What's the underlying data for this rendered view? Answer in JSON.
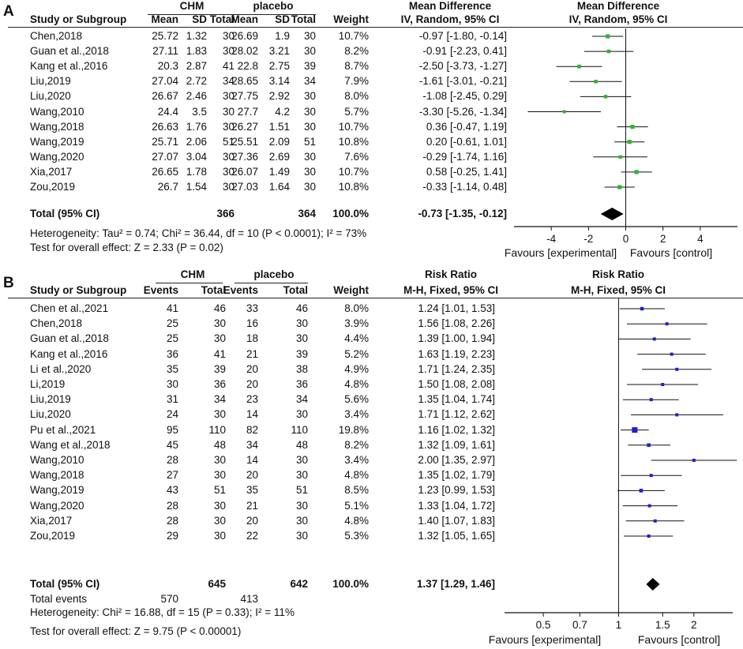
{
  "chart_data": [
    {
      "panel_label": "A",
      "type": "forest",
      "col_headers": {
        "study": "Study or Subgroup",
        "group1": "CHM",
        "group2": "placebo",
        "g1": [
          "Mean",
          "SD",
          "Total"
        ],
        "g2": [
          "Mean",
          "SD",
          "Total"
        ],
        "weight": "Weight",
        "effect_title": "Mean Difference",
        "effect_sub": "IV, Random, 95% CI",
        "plot_title": "Mean Difference",
        "plot_sub": "IV, Random, 95% CI"
      },
      "studies": [
        {
          "name": "Chen,2018",
          "c1": "25.72",
          "c2": "1.32",
          "c3": "30",
          "p1": "26.69",
          "p2": "1.9",
          "p3": "30",
          "weight": "10.7%",
          "ci_text": "-0.97 [-1.80, -0.14]",
          "est": -0.97,
          "lo": -1.8,
          "hi": -0.14
        },
        {
          "name": "Guan et al.,2018",
          "c1": "27.11",
          "c2": "1.83",
          "c3": "30",
          "p1": "28.02",
          "p2": "3.21",
          "p3": "30",
          "weight": "8.2%",
          "ci_text": "-0.91 [-2.23, 0.41]",
          "est": -0.91,
          "lo": -2.23,
          "hi": 0.41
        },
        {
          "name": "Kang et al.,2016",
          "c1": "20.3",
          "c2": "2.87",
          "c3": "41",
          "p1": "22.8",
          "p2": "2.75",
          "p3": "39",
          "weight": "8.7%",
          "ci_text": "-2.50 [-3.73, -1.27]",
          "est": -2.5,
          "lo": -3.73,
          "hi": -1.27
        },
        {
          "name": "Liu,2019",
          "c1": "27.04",
          "c2": "2.72",
          "c3": "34",
          "p1": "28.65",
          "p2": "3.14",
          "p3": "34",
          "weight": "7.9%",
          "ci_text": "-1.61 [-3.01, -0.21]",
          "est": -1.61,
          "lo": -3.01,
          "hi": -0.21
        },
        {
          "name": "Liu,2020",
          "c1": "26.67",
          "c2": "2.46",
          "c3": "30",
          "p1": "27.75",
          "p2": "2.92",
          "p3": "30",
          "weight": "8.0%",
          "ci_text": "-1.08 [-2.45, 0.29]",
          "est": -1.08,
          "lo": -2.45,
          "hi": 0.29
        },
        {
          "name": "Wang,2010",
          "c1": "24.4",
          "c2": "3.5",
          "c3": "30",
          "p1": "27.7",
          "p2": "4.2",
          "p3": "30",
          "weight": "5.7%",
          "ci_text": "-3.30 [-5.26, -1.34]",
          "est": -3.3,
          "lo": -5.26,
          "hi": -1.34
        },
        {
          "name": "Wang,2018",
          "c1": "26.63",
          "c2": "1.76",
          "c3": "30",
          "p1": "26.27",
          "p2": "1.51",
          "p3": "30",
          "weight": "10.7%",
          "ci_text": "0.36 [-0.47, 1.19]",
          "est": 0.36,
          "lo": -0.47,
          "hi": 1.19
        },
        {
          "name": "Wang,2019",
          "c1": "25.71",
          "c2": "2.06",
          "c3": "51",
          "p1": "25.51",
          "p2": "2.09",
          "p3": "51",
          "weight": "10.8%",
          "ci_text": "0.20 [-0.61, 1.01]",
          "est": 0.2,
          "lo": -0.61,
          "hi": 1.01
        },
        {
          "name": "Wang,2020",
          "c1": "27.07",
          "c2": "3.04",
          "c3": "30",
          "p1": "27.36",
          "p2": "2.69",
          "p3": "30",
          "weight": "7.6%",
          "ci_text": "-0.29 [-1.74, 1.16]",
          "est": -0.29,
          "lo": -1.74,
          "hi": 1.16
        },
        {
          "name": "Xia,2017",
          "c1": "26.65",
          "c2": "1.78",
          "c3": "30",
          "p1": "26.07",
          "p2": "1.49",
          "p3": "30",
          "weight": "10.7%",
          "ci_text": "0.58 [-0.25, 1.41]",
          "est": 0.58,
          "lo": -0.25,
          "hi": 1.41
        },
        {
          "name": "Zou,2019",
          "c1": "26.7",
          "c2": "1.54",
          "c3": "30",
          "p1": "27.03",
          "p2": "1.64",
          "p3": "30",
          "weight": "10.8%",
          "ci_text": "-0.33 [-1.14, 0.48]",
          "est": -0.33,
          "lo": -1.14,
          "hi": 0.48
        }
      ],
      "total": {
        "name": "Total (95% CI)",
        "g1_total": "366",
        "g2_total": "364",
        "weight": "100.0%",
        "ci_text": "-0.73 [-1.35, -0.12]",
        "est": -0.73,
        "lo": -1.35,
        "hi": -0.12
      },
      "footnotes": [
        "Heterogeneity: Tau² = 0.74; Chi² = 36.44, df = 10 (P < 0.0001); I² = 73%",
        "Test for overall effect: Z = 2.33 (P = 0.02)"
      ],
      "axis": {
        "scale": "linear",
        "min": -6,
        "max": 6,
        "ticks": [
          -4,
          -2,
          0,
          2,
          4
        ],
        "tick_labels": [
          "-4",
          "-2",
          "0",
          "2",
          "4"
        ],
        "null_value": 0
      },
      "favours_left": "Favours [experimental]",
      "favours_right": "Favours [control]",
      "marker_color": "#2db52d"
    },
    {
      "panel_label": "B",
      "type": "forest",
      "col_headers": {
        "study": "Study or Subgroup",
        "group1": "CHM",
        "group2": "placebo",
        "g1": [
          "Events",
          "Total"
        ],
        "g2": [
          "Events",
          "Total"
        ],
        "weight": "Weight",
        "effect_title": "Risk Ratio",
        "effect_sub": "M-H, Fixed, 95% CI",
        "plot_title": "Risk Ratio",
        "plot_sub": "M-H, Fixed, 95% CI"
      },
      "studies": [
        {
          "name": "Chen et al.,2021",
          "c1": "41",
          "c2": "46",
          "p1": "33",
          "p2": "46",
          "weight": "8.0%",
          "ci_text": "1.24 [1.01, 1.53]",
          "est": 1.24,
          "lo": 1.01,
          "hi": 1.53
        },
        {
          "name": "Chen,2018",
          "c1": "25",
          "c2": "30",
          "p1": "16",
          "p2": "30",
          "weight": "3.9%",
          "ci_text": "1.56 [1.08, 2.26]",
          "est": 1.56,
          "lo": 1.08,
          "hi": 2.26
        },
        {
          "name": "Guan et al.,2018",
          "c1": "25",
          "c2": "30",
          "p1": "18",
          "p2": "30",
          "weight": "4.4%",
          "ci_text": "1.39 [1.00, 1.94]",
          "est": 1.39,
          "lo": 1.0,
          "hi": 1.94
        },
        {
          "name": "Kang et al.,2016",
          "c1": "36",
          "c2": "41",
          "p1": "21",
          "p2": "39",
          "weight": "5.2%",
          "ci_text": "1.63 [1.19, 2.23]",
          "est": 1.63,
          "lo": 1.19,
          "hi": 2.23
        },
        {
          "name": "Li et al.,2020",
          "c1": "35",
          "c2": "39",
          "p1": "20",
          "p2": "38",
          "weight": "4.9%",
          "ci_text": "1.71 [1.24, 2.35]",
          "est": 1.71,
          "lo": 1.24,
          "hi": 2.35
        },
        {
          "name": "Li,2019",
          "c1": "30",
          "c2": "36",
          "p1": "20",
          "p2": "36",
          "weight": "4.8%",
          "ci_text": "1.50 [1.08, 2.08]",
          "est": 1.5,
          "lo": 1.08,
          "hi": 2.08
        },
        {
          "name": "Liu,2019",
          "c1": "31",
          "c2": "34",
          "p1": "23",
          "p2": "34",
          "weight": "5.6%",
          "ci_text": "1.35 [1.04, 1.74]",
          "est": 1.35,
          "lo": 1.04,
          "hi": 1.74
        },
        {
          "name": "Liu,2020",
          "c1": "24",
          "c2": "30",
          "p1": "14",
          "p2": "30",
          "weight": "3.4%",
          "ci_text": "1.71 [1.12, 2.62]",
          "est": 1.71,
          "lo": 1.12,
          "hi": 2.62
        },
        {
          "name": "Pu et al.,2021",
          "c1": "95",
          "c2": "110",
          "p1": "82",
          "p2": "110",
          "weight": "19.8%",
          "ci_text": "1.16 [1.02, 1.32]",
          "est": 1.16,
          "lo": 1.02,
          "hi": 1.32
        },
        {
          "name": "Wang et al.,2018",
          "c1": "45",
          "c2": "48",
          "p1": "34",
          "p2": "48",
          "weight": "8.2%",
          "ci_text": "1.32 [1.09, 1.61]",
          "est": 1.32,
          "lo": 1.09,
          "hi": 1.61
        },
        {
          "name": "Wang,2010",
          "c1": "28",
          "c2": "30",
          "p1": "14",
          "p2": "30",
          "weight": "3.4%",
          "ci_text": "2.00 [1.35, 2.97]",
          "est": 2.0,
          "lo": 1.35,
          "hi": 2.97
        },
        {
          "name": "Wang,2018",
          "c1": "27",
          "c2": "30",
          "p1": "20",
          "p2": "30",
          "weight": "4.8%",
          "ci_text": "1.35 [1.02, 1.79]",
          "est": 1.35,
          "lo": 1.02,
          "hi": 1.79
        },
        {
          "name": "Wang,2019",
          "c1": "43",
          "c2": "51",
          "p1": "35",
          "p2": "51",
          "weight": "8.5%",
          "ci_text": "1.23 [0.99, 1.53]",
          "est": 1.23,
          "lo": 0.99,
          "hi": 1.53
        },
        {
          "name": "Wang,2020",
          "c1": "28",
          "c2": "30",
          "p1": "21",
          "p2": "30",
          "weight": "5.1%",
          "ci_text": "1.33 [1.04, 1.72]",
          "est": 1.33,
          "lo": 1.04,
          "hi": 1.72
        },
        {
          "name": "Xia,2017",
          "c1": "28",
          "c2": "30",
          "p1": "20",
          "p2": "30",
          "weight": "4.8%",
          "ci_text": "1.40 [1.07, 1.83]",
          "est": 1.4,
          "lo": 1.07,
          "hi": 1.83
        },
        {
          "name": "Zou,2019",
          "c1": "29",
          "c2": "30",
          "p1": "22",
          "p2": "30",
          "weight": "5.3%",
          "ci_text": "1.32 [1.05, 1.65]",
          "est": 1.32,
          "lo": 1.05,
          "hi": 1.65
        }
      ],
      "total": {
        "name": "Total (95% CI)",
        "g1_total": "645",
        "g2_total": "642",
        "weight": "100.0%",
        "ci_text": "1.37 [1.29, 1.46]",
        "est": 1.37,
        "lo": 1.29,
        "hi": 1.46
      },
      "total_events": {
        "label": "Total events",
        "g1": "570",
        "g2": "413"
      },
      "footnotes": [
        "Heterogeneity: Chi² = 16.88, df = 15 (P = 0.33); I² = 11%",
        "Test for overall effect: Z = 9.75 (P < 0.00001)"
      ],
      "axis": {
        "scale": "log",
        "min": 0.35,
        "max": 2.86,
        "ticks": [
          0.5,
          0.7,
          1,
          1.5,
          2
        ],
        "tick_labels": [
          "0.5",
          "0.7",
          "1",
          "1.5",
          "2"
        ],
        "null_value": 1
      },
      "favours_left": "Favours [experimental]",
      "favours_right": "Favours [control]",
      "marker_color": "#1f1fd0"
    }
  ]
}
